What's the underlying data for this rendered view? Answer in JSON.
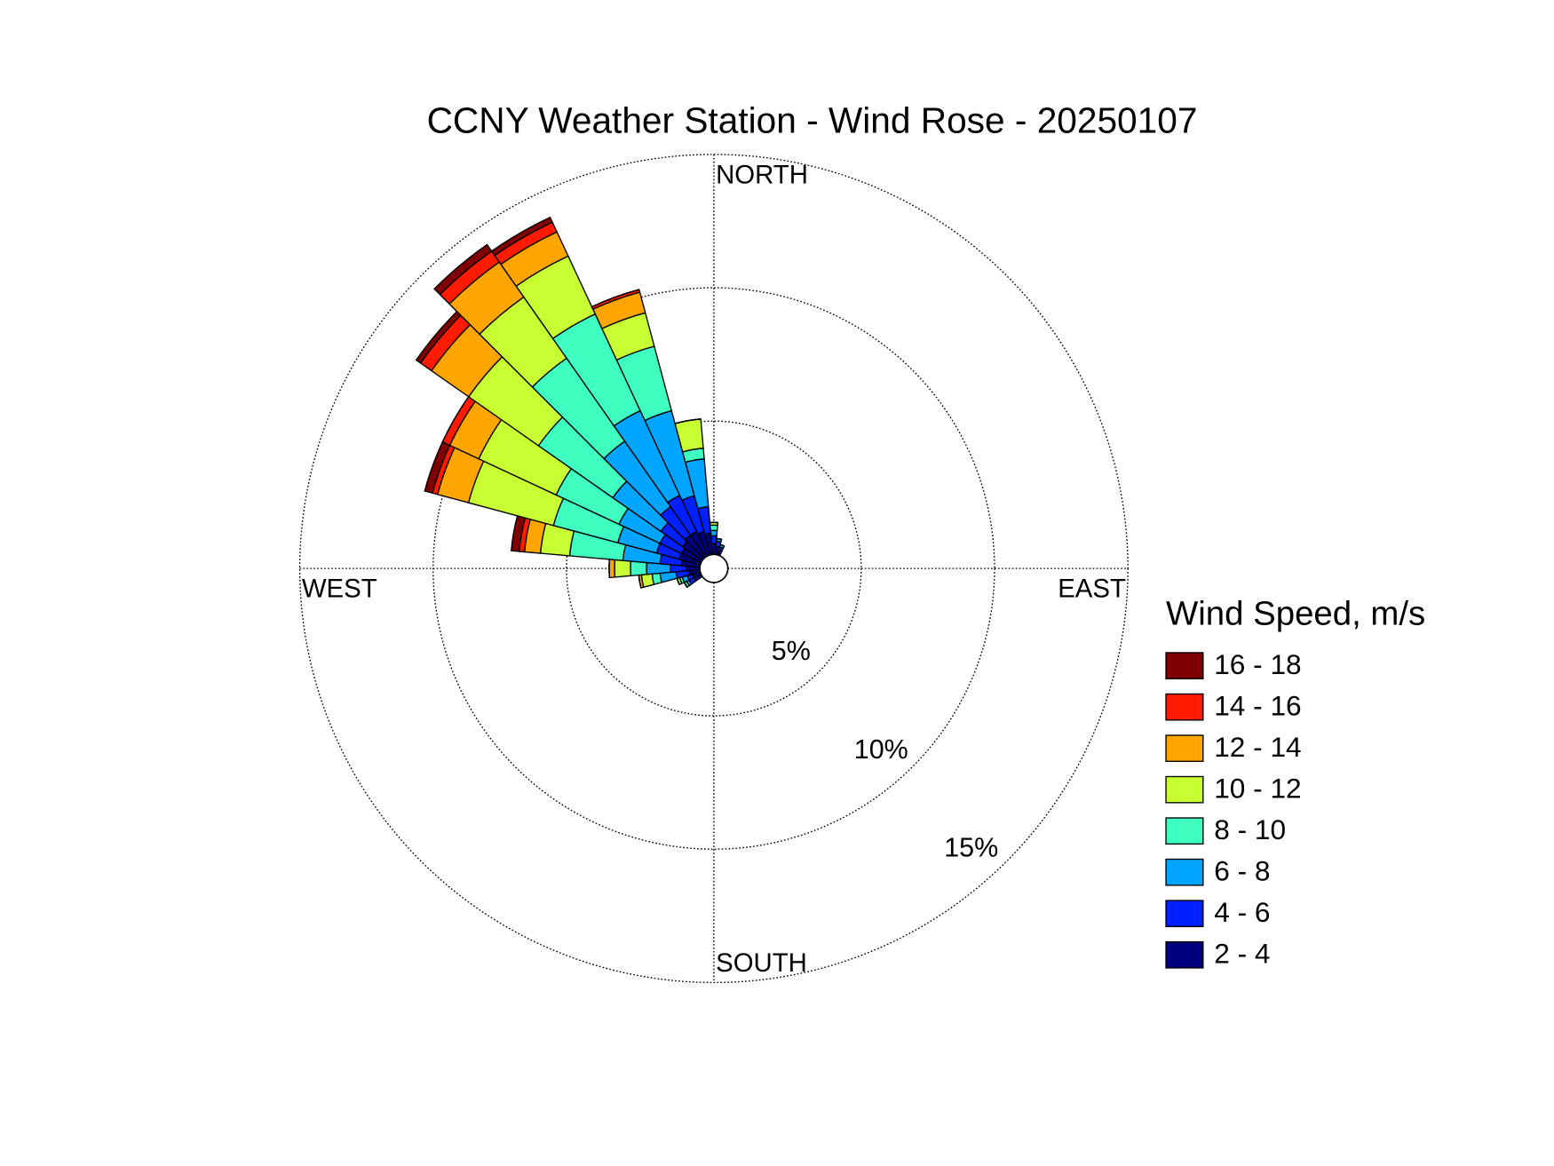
{
  "chart_data": {
    "type": "windrose",
    "title": "CCNY Weather Station - Wind Rose - 20250107",
    "legend_title": "Wind Speed, m/s",
    "direction_labels": [
      "NORTH",
      "EAST",
      "SOUTH",
      "WEST"
    ],
    "x": [
      0,
      10,
      20,
      240,
      250,
      260,
      270,
      280,
      290,
      300,
      310,
      320,
      330,
      340,
      350
    ],
    "sector_width": 10,
    "rlim": [
      0,
      15
    ],
    "rticks": [
      {
        "value": 5,
        "label": "5%"
      },
      {
        "value": 10,
        "label": "10%"
      },
      {
        "value": 15,
        "label": "15%"
      }
    ],
    "grid": true,
    "series": [
      {
        "name": "2 - 4",
        "color": "#00007f",
        "values": [
          0.4,
          0.3,
          0.2,
          0.3,
          0.3,
          0.4,
          0.5,
          0.7,
          0.8,
          0.8,
          0.9,
          1.0,
          1.0,
          0.9,
          0.8
        ]
      },
      {
        "name": "4 - 6",
        "color": "#0020ff",
        "values": [
          0.3,
          0.2,
          0.1,
          0.2,
          0.2,
          0.5,
          0.6,
          0.8,
          0.9,
          0.9,
          1.0,
          1.3,
          1.5,
          1.4,
          1.0
        ]
      },
      {
        "name": "6 - 8",
        "color": "#00a5ff",
        "values": [
          0.2,
          0.1,
          0.1,
          0.1,
          0.2,
          0.6,
          0.9,
          1.4,
          1.5,
          1.7,
          2.2,
          3.0,
          3.5,
          3.3,
          1.8
        ]
      },
      {
        "name": "8 - 10",
        "color": "#3effc0",
        "values": [
          0.2,
          0,
          0,
          0.1,
          0.1,
          0.3,
          0.6,
          2.0,
          2.5,
          2.6,
          3.4,
          3.8,
          4.0,
          2.5,
          0.4
        ]
      },
      {
        "name": "10 - 12",
        "color": "#c8ff32",
        "values": [
          0.1,
          0,
          0,
          0,
          0.1,
          0.4,
          0.6,
          1.1,
          3.3,
          3.2,
          3.2,
          2.8,
          2.4,
          1.3,
          1.1
        ]
      },
      {
        "name": "12 - 14",
        "color": "#ffa500",
        "values": [
          0,
          0,
          0,
          0,
          0,
          0.1,
          0.2,
          0.6,
          1.2,
          1.2,
          1.7,
          1.6,
          1.0,
          0.8,
          0
        ]
      },
      {
        "name": "14 - 16",
        "color": "#ff1a00",
        "values": [
          0,
          0,
          0,
          0,
          0,
          0,
          0,
          0.2,
          0.2,
          0.3,
          0.5,
          0.5,
          0.4,
          0.1,
          0
        ]
      },
      {
        "name": "16 - 18",
        "color": "#7f0000",
        "values": [
          0,
          0,
          0,
          0,
          0,
          0,
          0,
          0.3,
          0.3,
          0,
          0.2,
          0.3,
          0.2,
          0,
          0
        ]
      }
    ]
  }
}
